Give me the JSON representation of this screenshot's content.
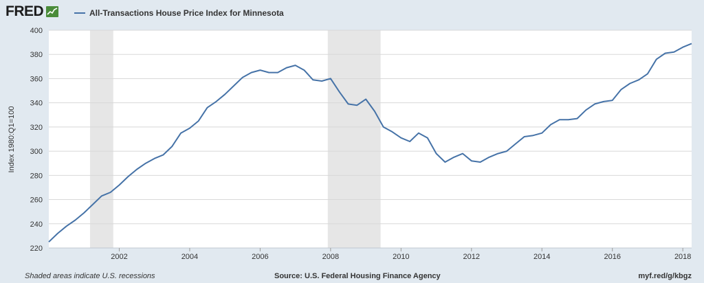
{
  "header": {
    "logo_text": "FRED",
    "logo_icon": "chart-line-icon",
    "legend_text": "All-Transactions House Price Index for Minnesota"
  },
  "footer": {
    "left": "Shaded areas indicate U.S. recessions",
    "center": "Source: U.S. Federal Housing Finance Agency",
    "right": "myf.red/g/kbgz"
  },
  "colors": {
    "background": "#e1e9f0",
    "plot_background": "#ffffff",
    "line": "#4572a7",
    "recession": "#e6e6e6",
    "grid": "#d8d8d8"
  },
  "chart_data": {
    "type": "line",
    "title": "All-Transactions House Price Index for Minnesota",
    "ylabel": "Index 1980:Q1=100",
    "xlabel": "",
    "xlim": [
      2000.0,
      2018.25
    ],
    "ylim": [
      220,
      400
    ],
    "x_ticks": [
      2002,
      2004,
      2006,
      2008,
      2010,
      2012,
      2014,
      2016,
      2018
    ],
    "x_tick_labels": [
      "2002",
      "2004",
      "2006",
      "2008",
      "2010",
      "2012",
      "2014",
      "2016",
      "2018"
    ],
    "y_ticks": [
      220,
      240,
      260,
      280,
      300,
      320,
      340,
      360,
      380,
      400
    ],
    "y_tick_labels": [
      "220",
      "240",
      "260",
      "280",
      "300",
      "320",
      "340",
      "360",
      "380",
      "400"
    ],
    "grid": "horizontal",
    "legend": "top-left",
    "recessions": [
      [
        2001.17,
        2001.83
      ],
      [
        2007.92,
        2009.42
      ]
    ],
    "series": [
      {
        "name": "All-Transactions House Price Index for Minnesota",
        "x": [
          2000.0,
          2000.25,
          2000.5,
          2000.75,
          2001.0,
          2001.25,
          2001.5,
          2001.75,
          2002.0,
          2002.25,
          2002.5,
          2002.75,
          2003.0,
          2003.25,
          2003.5,
          2003.75,
          2004.0,
          2004.25,
          2004.5,
          2004.75,
          2005.0,
          2005.25,
          2005.5,
          2005.75,
          2006.0,
          2006.25,
          2006.5,
          2006.75,
          2007.0,
          2007.25,
          2007.5,
          2007.75,
          2008.0,
          2008.25,
          2008.5,
          2008.75,
          2009.0,
          2009.25,
          2009.5,
          2009.75,
          2010.0,
          2010.25,
          2010.5,
          2010.75,
          2011.0,
          2011.25,
          2011.5,
          2011.75,
          2012.0,
          2012.25,
          2012.5,
          2012.75,
          2013.0,
          2013.25,
          2013.5,
          2013.75,
          2014.0,
          2014.25,
          2014.5,
          2014.75,
          2015.0,
          2015.25,
          2015.5,
          2015.75,
          2016.0,
          2016.25,
          2016.5,
          2016.75,
          2017.0,
          2017.25,
          2017.5,
          2017.75,
          2018.0,
          2018.25
        ],
        "values": [
          225,
          232,
          238,
          243,
          249,
          256,
          263,
          266,
          272,
          279,
          285,
          290,
          294,
          297,
          304,
          315,
          319,
          325,
          336,
          341,
          347,
          354,
          361,
          365,
          367,
          365,
          365,
          369,
          371,
          367,
          359,
          358,
          360,
          349,
          339,
          338,
          343,
          333,
          320,
          316,
          311,
          308,
          315,
          311,
          298,
          291,
          295,
          298,
          292,
          291,
          295,
          298,
          300,
          306,
          312,
          313,
          315,
          322,
          326,
          326,
          327,
          334,
          339,
          341,
          342,
          351,
          356,
          359,
          364,
          376,
          381,
          382,
          386,
          389
        ]
      }
    ]
  }
}
